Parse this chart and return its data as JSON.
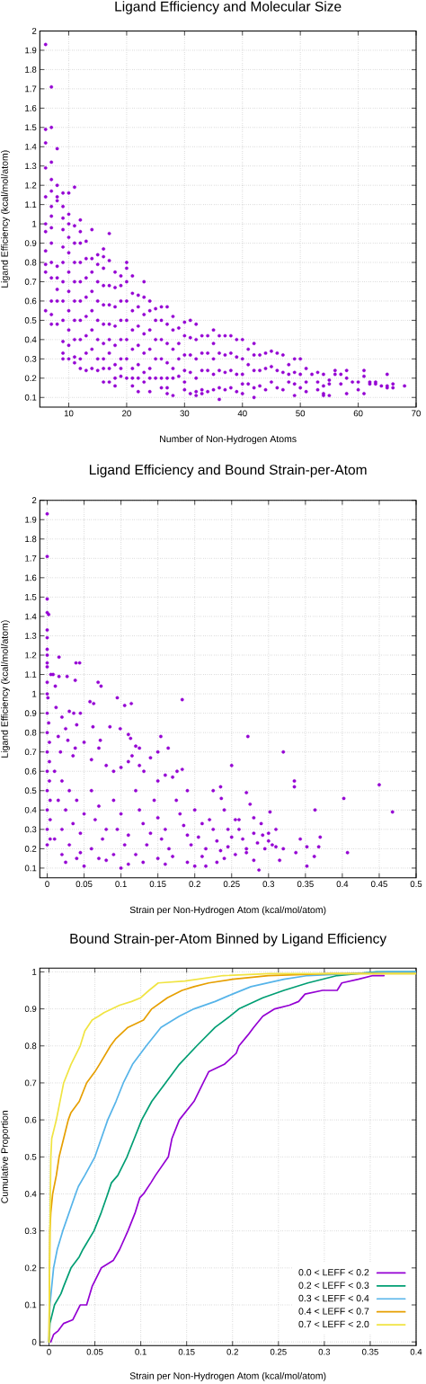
{
  "chart_data": [
    {
      "type": "scatter",
      "title": "Ligand Efficiency and Molecular Size",
      "xlabel": "Number of Non-Hydrogen Atoms",
      "ylabel": "Ligand Efficiency (kcal/mol/atom)",
      "color": "#9400d3",
      "marker": "circle",
      "grid": true,
      "xlim": [
        5,
        70
      ],
      "ylim": [
        0.05,
        2
      ],
      "xticks": [
        10,
        20,
        30,
        40,
        50,
        60,
        70
      ],
      "yticks": [
        0.1,
        0.2,
        0.3,
        0.4,
        0.5,
        0.6,
        0.7,
        0.8,
        0.9,
        1,
        1.1,
        1.2,
        1.3,
        1.4,
        1.5,
        1.6,
        1.7,
        1.8,
        1.9,
        2
      ],
      "x": [
        6,
        6,
        6,
        6,
        6,
        6,
        6,
        6,
        6,
        6,
        6,
        7,
        7,
        7,
        7,
        7,
        7,
        7,
        7,
        7,
        7,
        7,
        7,
        7,
        7,
        8,
        8,
        8,
        8,
        8,
        8,
        8,
        8,
        8,
        9,
        9,
        9,
        9,
        9,
        9,
        9,
        9,
        9,
        9,
        9,
        9,
        10,
        10,
        10,
        10,
        10,
        10,
        10,
        10,
        10,
        10,
        10,
        11,
        11,
        11,
        11,
        11,
        11,
        11,
        11,
        11,
        11,
        12,
        12,
        12,
        12,
        12,
        12,
        12,
        12,
        12,
        12,
        13,
        13,
        13,
        13,
        13,
        13,
        13,
        13,
        14,
        14,
        14,
        14,
        14,
        14,
        14,
        14,
        15,
        15,
        15,
        15,
        15,
        15,
        15,
        15,
        16,
        16,
        16,
        16,
        16,
        16,
        16,
        16,
        16,
        16,
        17,
        17,
        17,
        17,
        17,
        17,
        17,
        17,
        17,
        18,
        18,
        18,
        18,
        18,
        18,
        18,
        18,
        19,
        19,
        19,
        19,
        19,
        19,
        19,
        19,
        20,
        20,
        20,
        20,
        20,
        20,
        20,
        20,
        21,
        21,
        21,
        21,
        21,
        21,
        21,
        21,
        22,
        22,
        22,
        22,
        22,
        22,
        22,
        23,
        23,
        23,
        23,
        23,
        23,
        23,
        24,
        24,
        24,
        24,
        24,
        24,
        24,
        25,
        25,
        25,
        25,
        25,
        26,
        26,
        26,
        26,
        26,
        26,
        27,
        27,
        27,
        27,
        27,
        27,
        27,
        28,
        28,
        28,
        28,
        28,
        28,
        29,
        29,
        29,
        29,
        30,
        30,
        30,
        30,
        30,
        30,
        31,
        31,
        31,
        31,
        31,
        32,
        32,
        32,
        32,
        32,
        32,
        33,
        33,
        33,
        33,
        33,
        34,
        34,
        34,
        34,
        35,
        35,
        35,
        35,
        35,
        36,
        36,
        36,
        36,
        36,
        37,
        37,
        37,
        37,
        38,
        38,
        38,
        38,
        39,
        39,
        39,
        39,
        40,
        40,
        40,
        40,
        40,
        41,
        41,
        41,
        42,
        42,
        42,
        42,
        42,
        43,
        43,
        43,
        44,
        44,
        44,
        45,
        45,
        45,
        46,
        46,
        46,
        47,
        47,
        47,
        48,
        48,
        48,
        49,
        49,
        49,
        49,
        50,
        50,
        50,
        51,
        51,
        51,
        52,
        53,
        53,
        53,
        54,
        54,
        54,
        54,
        55,
        55,
        55,
        56,
        56,
        57,
        57,
        58,
        58,
        58,
        59,
        60,
        60,
        61,
        61,
        61,
        62,
        62,
        63,
        63,
        64,
        65,
        65,
        65,
        66,
        66,
        68
      ],
      "values": [
        1.93,
        1.49,
        1.42,
        1.29,
        1.14,
        1.0,
        0.96,
        0.86,
        0.79,
        0.75,
        0.55,
        1.71,
        1.5,
        1.32,
        1.23,
        1.17,
        1.09,
        1.04,
        0.98,
        0.9,
        0.8,
        0.72,
        0.6,
        0.53,
        0.48,
        1.39,
        1.2,
        1.14,
        1.12,
        0.78,
        0.72,
        0.66,
        0.6,
        0.48,
        1.16,
        1.09,
        1.03,
        0.97,
        0.88,
        0.8,
        0.7,
        0.6,
        0.5,
        0.39,
        0.33,
        0.3,
        1.16,
        1.05,
        1.0,
        0.93,
        0.85,
        0.75,
        0.65,
        0.55,
        0.45,
        0.37,
        0.3,
        1.19,
        0.99,
        0.9,
        0.8,
        0.7,
        0.6,
        0.5,
        0.4,
        0.31,
        0.28,
        1.02,
        0.96,
        0.9,
        0.8,
        0.7,
        0.6,
        0.5,
        0.4,
        0.3,
        0.25,
        0.91,
        0.82,
        0.72,
        0.62,
        0.52,
        0.42,
        0.33,
        0.24,
        0.97,
        0.82,
        0.75,
        0.65,
        0.55,
        0.45,
        0.35,
        0.25,
        0.84,
        0.79,
        0.7,
        0.6,
        0.5,
        0.4,
        0.3,
        0.24,
        0.87,
        0.83,
        0.77,
        0.68,
        0.58,
        0.48,
        0.38,
        0.3,
        0.25,
        0.18,
        0.95,
        0.81,
        0.68,
        0.58,
        0.48,
        0.4,
        0.33,
        0.25,
        0.18,
        0.75,
        0.67,
        0.57,
        0.47,
        0.37,
        0.27,
        0.2,
        0.16,
        0.73,
        0.68,
        0.6,
        0.5,
        0.4,
        0.3,
        0.25,
        0.21,
        0.8,
        0.77,
        0.7,
        0.6,
        0.5,
        0.4,
        0.3,
        0.2,
        0.73,
        0.64,
        0.55,
        0.45,
        0.35,
        0.25,
        0.2,
        0.16,
        0.63,
        0.57,
        0.47,
        0.37,
        0.27,
        0.2,
        0.13,
        0.7,
        0.62,
        0.53,
        0.43,
        0.33,
        0.23,
        0.18,
        0.6,
        0.55,
        0.45,
        0.35,
        0.25,
        0.2,
        0.13,
        0.56,
        0.5,
        0.4,
        0.3,
        0.2,
        0.57,
        0.5,
        0.4,
        0.3,
        0.2,
        0.15,
        0.57,
        0.48,
        0.38,
        0.28,
        0.2,
        0.15,
        0.12,
        0.52,
        0.45,
        0.35,
        0.25,
        0.2,
        0.11,
        0.46,
        0.38,
        0.3,
        0.21,
        0.49,
        0.42,
        0.32,
        0.24,
        0.18,
        0.14,
        0.5,
        0.41,
        0.32,
        0.23,
        0.12,
        0.48,
        0.4,
        0.3,
        0.2,
        0.13,
        0.11,
        0.42,
        0.33,
        0.24,
        0.14,
        0.12,
        0.42,
        0.33,
        0.24,
        0.13,
        0.45,
        0.38,
        0.3,
        0.22,
        0.14,
        0.42,
        0.33,
        0.24,
        0.15,
        0.09,
        0.42,
        0.32,
        0.23,
        0.14,
        0.42,
        0.33,
        0.24,
        0.15,
        0.4,
        0.31,
        0.22,
        0.13,
        0.4,
        0.3,
        0.22,
        0.17,
        0.12,
        0.35,
        0.27,
        0.17,
        0.38,
        0.32,
        0.24,
        0.15,
        0.1,
        0.32,
        0.24,
        0.16,
        0.33,
        0.25,
        0.14,
        0.34,
        0.26,
        0.18,
        0.33,
        0.24,
        0.15,
        0.32,
        0.23,
        0.14,
        0.27,
        0.22,
        0.18,
        0.3,
        0.23,
        0.17,
        0.11,
        0.3,
        0.22,
        0.15,
        0.25,
        0.18,
        0.13,
        0.22,
        0.23,
        0.18,
        0.14,
        0.22,
        0.16,
        0.12,
        0.11,
        0.19,
        0.17,
        0.11,
        0.24,
        0.22,
        0.22,
        0.17,
        0.24,
        0.2,
        0.12,
        0.18,
        0.18,
        0.14,
        0.24,
        0.21,
        0.12,
        0.18,
        0.17,
        0.18,
        0.17,
        0.16,
        0.22,
        0.16,
        0.15,
        0.17,
        0.15,
        0.16
      ]
    },
    {
      "type": "scatter",
      "title": "Ligand Efficiency and Bound Strain-per-Atom",
      "xlabel": "Strain per Non-Hydrogen Atom (kcal/mol/atom)",
      "ylabel": "Ligand Efficiency (kcal/mol/atom)",
      "color": "#9400d3",
      "marker": "circle",
      "grid": true,
      "xlim": [
        -0.01,
        0.5
      ],
      "ylim": [
        0.05,
        2
      ],
      "xticks": [
        0,
        0.05,
        0.1,
        0.15,
        0.2,
        0.25,
        0.3,
        0.35,
        0.4,
        0.45,
        0.5
      ],
      "yticks": [
        0.1,
        0.2,
        0.3,
        0.4,
        0.5,
        0.6,
        0.7,
        0.8,
        0.9,
        1,
        1.1,
        1.2,
        1.3,
        1.4,
        1.5,
        1.6,
        1.7,
        1.8,
        1.9,
        2
      ],
      "x": [
        0,
        0,
        0,
        0,
        0.002,
        0,
        0,
        0,
        0,
        0,
        0,
        0.016,
        0.039,
        0.044,
        0.005,
        0.008,
        0.016,
        0.027,
        0.038,
        0.069,
        0,
        0.011,
        0.073,
        0,
        0.001,
        0.095,
        0.105,
        0.114,
        0.183,
        0.058,
        0.063,
        0.272,
        0.32,
        0.154,
        0.164,
        0.25,
        0.335,
        0.335,
        0.45,
        0.402,
        0.363,
        0.468,
        0.302,
        0.27,
        0.235,
        0.225,
        0.236,
        0.37,
        0.343,
        0.352,
        0.368,
        0.407,
        0.362,
        0.352,
        0.337,
        0.32,
        0.315,
        0.287,
        0.292,
        0.3,
        0.31,
        0.275,
        0.28,
        0.26,
        0.255,
        0.27,
        0.2,
        0.215,
        0.1,
        0.05,
        0.025,
        0,
        0,
        0,
        0,
        0,
        0,
        0,
        0,
        0.002,
        0.003,
        0.003,
        0.003,
        0.004,
        0.004,
        0.004,
        0.012,
        0.02,
        0.03,
        0.036,
        0.045,
        0.025,
        0.04,
        0.015,
        0.028,
        0.05,
        0.038,
        0.018,
        0.035,
        0.062,
        0.085,
        0.099,
        0.072,
        0.07,
        0.11,
        0.113,
        0.12,
        0.125,
        0.115,
        0.11,
        0.125,
        0.14,
        0.1,
        0.09,
        0.06,
        0.08,
        0.131,
        0.15,
        0.183,
        0.17,
        0.176,
        0.16,
        0.15,
        0.01,
        0.02,
        0.03,
        0.015,
        0.025,
        0.04,
        0.05,
        0.035,
        0.02,
        0.045,
        0.01,
        0.03,
        0.06,
        0.07,
        0.065,
        0.08,
        0.075,
        0.06,
        0.09,
        0.1,
        0.095,
        0.11,
        0.105,
        0.09,
        0.12,
        0.125,
        0.13,
        0.14,
        0.135,
        0.12,
        0.145,
        0.15,
        0.16,
        0.155,
        0.165,
        0.15,
        0.02,
        0.04,
        0.045,
        0.07,
        0.08,
        0.11,
        0.13,
        0.16,
        0.17,
        0.175,
        0.18,
        0.185,
        0.19,
        0.195,
        0.19,
        0.2,
        0.21,
        0.205,
        0.215,
        0.21,
        0.22,
        0.225,
        0.23,
        0.235,
        0.24,
        0.245,
        0.25,
        0.245,
        0.24,
        0.255,
        0.26,
        0.265,
        0.27,
        0.28,
        0.285,
        0.29,
        0.295,
        0.3,
        0.305,
        0.31,
        0.28,
        0.19,
        0.23
      ],
      "values": [
        1.93,
        1.71,
        1.49,
        1.42,
        1.41,
        1.33,
        1.29,
        1.23,
        1.2,
        1.16,
        1.14,
        1.19,
        1.16,
        1.16,
        1.1,
        1.1,
        1.09,
        1.09,
        1.07,
        1.06,
        1.06,
        1.04,
        1.04,
        1,
        0.98,
        0.98,
        0.94,
        0.95,
        0.97,
        0.96,
        0.95,
        0.78,
        0.7,
        0.78,
        0.72,
        0.63,
        0.55,
        0.52,
        0.53,
        0.46,
        0.4,
        0.39,
        0.39,
        0.49,
        0.52,
        0.5,
        0.46,
        0.26,
        0.25,
        0.21,
        0.21,
        0.18,
        0.16,
        0.11,
        0.18,
        0.2,
        0.14,
        0.09,
        0.27,
        0.28,
        0.3,
        0.43,
        0.36,
        0.35,
        0.17,
        0.18,
        0.11,
        0.11,
        0.1,
        0.11,
        0.13,
        0.9,
        0.8,
        0.7,
        0.6,
        0.5,
        0.4,
        0.3,
        0.22,
        0.85,
        0.75,
        0.65,
        0.55,
        0.45,
        0.35,
        0.25,
        0.93,
        0.88,
        0.91,
        0.9,
        0.9,
        0.82,
        0.84,
        0.78,
        0.76,
        0.75,
        0.72,
        0.7,
        0.68,
        0.83,
        0.83,
        0.82,
        0.76,
        0.72,
        0.79,
        0.77,
        0.73,
        0.72,
        0.68,
        0.65,
        0.63,
        0.67,
        0.62,
        0.6,
        0.66,
        0.63,
        0.6,
        0.7,
        0.61,
        0.57,
        0.6,
        0.58,
        0.55,
        0.6,
        0.55,
        0.5,
        0.45,
        0.4,
        0.45,
        0.38,
        0.33,
        0.3,
        0.28,
        0.25,
        0.22,
        0.5,
        0.42,
        0.35,
        0.3,
        0.25,
        0.2,
        0.45,
        0.38,
        0.3,
        0.27,
        0.22,
        0.17,
        0.5,
        0.4,
        0.33,
        0.28,
        0.22,
        0.17,
        0.45,
        0.36,
        0.3,
        0.25,
        0.2,
        0.15,
        0.17,
        0.15,
        0.18,
        0.15,
        0.14,
        0.12,
        0.13,
        0.12,
        0.16,
        0.45,
        0.38,
        0.32,
        0.27,
        0.22,
        0.5,
        0.4,
        0.33,
        0.26,
        0.2,
        0.16,
        0.35,
        0.3,
        0.24,
        0.19,
        0.4,
        0.3,
        0.26,
        0.21,
        0.15,
        0.35,
        0.3,
        0.25,
        0.2,
        0.28,
        0.23,
        0.33,
        0.2,
        0.24,
        0.22,
        0.21,
        0.14,
        0.13,
        0.13
      ]
    },
    {
      "type": "line",
      "title": "Bound Strain-per-Atom Binned by Ligand Efficiency",
      "xlabel": "Strain per Non-Hydrogen Atom (kcal/mol/atom)",
      "ylabel": "Cumulative Proportion",
      "grid": true,
      "legend": "bottom right",
      "xlim": [
        -0.01,
        0.4
      ],
      "ylim": [
        -0.01,
        1.01
      ],
      "xticks": [
        0,
        0.05,
        0.1,
        0.15,
        0.2,
        0.25,
        0.3,
        0.35,
        0.4
      ],
      "yticks": [
        0,
        0.1,
        0.2,
        0.3,
        0.4,
        0.5,
        0.6,
        0.7,
        0.8,
        0.9,
        1
      ],
      "series": [
        {
          "name": "0.0 < LEFF < 0.2",
          "color": "#9400d3",
          "x": [
            0.002,
            0.005,
            0.01,
            0.016,
            0.026,
            0.034,
            0.041,
            0.047,
            0.057,
            0.07,
            0.077,
            0.086,
            0.094,
            0.099,
            0.103,
            0.111,
            0.116,
            0.13,
            0.134,
            0.142,
            0.158,
            0.168,
            0.174,
            0.191,
            0.204,
            0.207,
            0.217,
            0.223,
            0.233,
            0.246,
            0.262,
            0.272,
            0.279,
            0.298,
            0.314,
            0.319,
            0.337,
            0.353,
            0.365
          ],
          "values": [
            0,
            0.02,
            0.03,
            0.05,
            0.06,
            0.1,
            0.1,
            0.15,
            0.2,
            0.22,
            0.25,
            0.3,
            0.35,
            0.39,
            0.4,
            0.43,
            0.45,
            0.5,
            0.55,
            0.6,
            0.65,
            0.7,
            0.73,
            0.75,
            0.78,
            0.8,
            0.83,
            0.85,
            0.88,
            0.9,
            0.91,
            0.92,
            0.94,
            0.95,
            0.95,
            0.97,
            0.98,
            0.99,
            0.99
          ]
        },
        {
          "name": "0.2 < LEFF < 0.3",
          "color": "#009e73",
          "x": [
            0,
            0.001,
            0.006,
            0.013,
            0.016,
            0.024,
            0.033,
            0.037,
            0.049,
            0.057,
            0.064,
            0.068,
            0.075,
            0.085,
            0.093,
            0.101,
            0.112,
            0.127,
            0.142,
            0.161,
            0.181,
            0.197,
            0.207,
            0.233,
            0.256,
            0.282,
            0.314,
            0.357,
            0.4
          ],
          "values": [
            0,
            0.05,
            0.1,
            0.13,
            0.15,
            0.2,
            0.23,
            0.25,
            0.3,
            0.35,
            0.4,
            0.43,
            0.45,
            0.5,
            0.55,
            0.6,
            0.65,
            0.7,
            0.75,
            0.8,
            0.85,
            0.88,
            0.9,
            0.93,
            0.95,
            0.97,
            0.99,
            1,
            1
          ]
        },
        {
          "name": "0.3 < LEFF < 0.4",
          "color": "#56b4e9",
          "x": [
            0,
            0.001,
            0.003,
            0.005,
            0.009,
            0.015,
            0.022,
            0.029,
            0.032,
            0.039,
            0.05,
            0.057,
            0.064,
            0.073,
            0.081,
            0.091,
            0.106,
            0.122,
            0.142,
            0.158,
            0.181,
            0.2,
            0.22,
            0.256,
            0.282,
            0.37,
            0.4
          ],
          "values": [
            0,
            0.1,
            0.15,
            0.2,
            0.25,
            0.3,
            0.35,
            0.4,
            0.42,
            0.45,
            0.5,
            0.55,
            0.6,
            0.65,
            0.7,
            0.75,
            0.8,
            0.85,
            0.88,
            0.9,
            0.92,
            0.94,
            0.96,
            0.98,
            0.99,
            1,
            1
          ]
        },
        {
          "name": "0.4 < LEFF < 0.7",
          "color": "#e69f00",
          "x": [
            0,
            0.001,
            0.002,
            0.004,
            0.008,
            0.011,
            0.016,
            0.021,
            0.024,
            0.033,
            0.041,
            0.05,
            0.055,
            0.067,
            0.073,
            0.086,
            0.103,
            0.112,
            0.129,
            0.145,
            0.158,
            0.174,
            0.2,
            0.239,
            0.305,
            0.4
          ],
          "values": [
            0,
            0.3,
            0.35,
            0.4,
            0.45,
            0.5,
            0.55,
            0.6,
            0.62,
            0.65,
            0.7,
            0.73,
            0.75,
            0.8,
            0.82,
            0.85,
            0.87,
            0.9,
            0.93,
            0.95,
            0.96,
            0.97,
            0.98,
            0.99,
            0.995,
            0.995
          ]
        },
        {
          "name": "0.7 < LEFF < 2.0",
          "color": "#f0e442",
          "x": [
            0,
            0.001,
            0.002,
            0.003,
            0.008,
            0.016,
            0.024,
            0.034,
            0.039,
            0.047,
            0.054,
            0.06,
            0.077,
            0.09,
            0.1,
            0.109,
            0.119,
            0.148,
            0.19,
            0.24,
            0.4
          ],
          "values": [
            0,
            0.3,
            0.5,
            0.55,
            0.6,
            0.7,
            0.75,
            0.8,
            0.84,
            0.87,
            0.88,
            0.89,
            0.91,
            0.92,
            0.93,
            0.95,
            0.97,
            0.975,
            0.99,
            0.995,
            0.995
          ]
        }
      ]
    }
  ]
}
